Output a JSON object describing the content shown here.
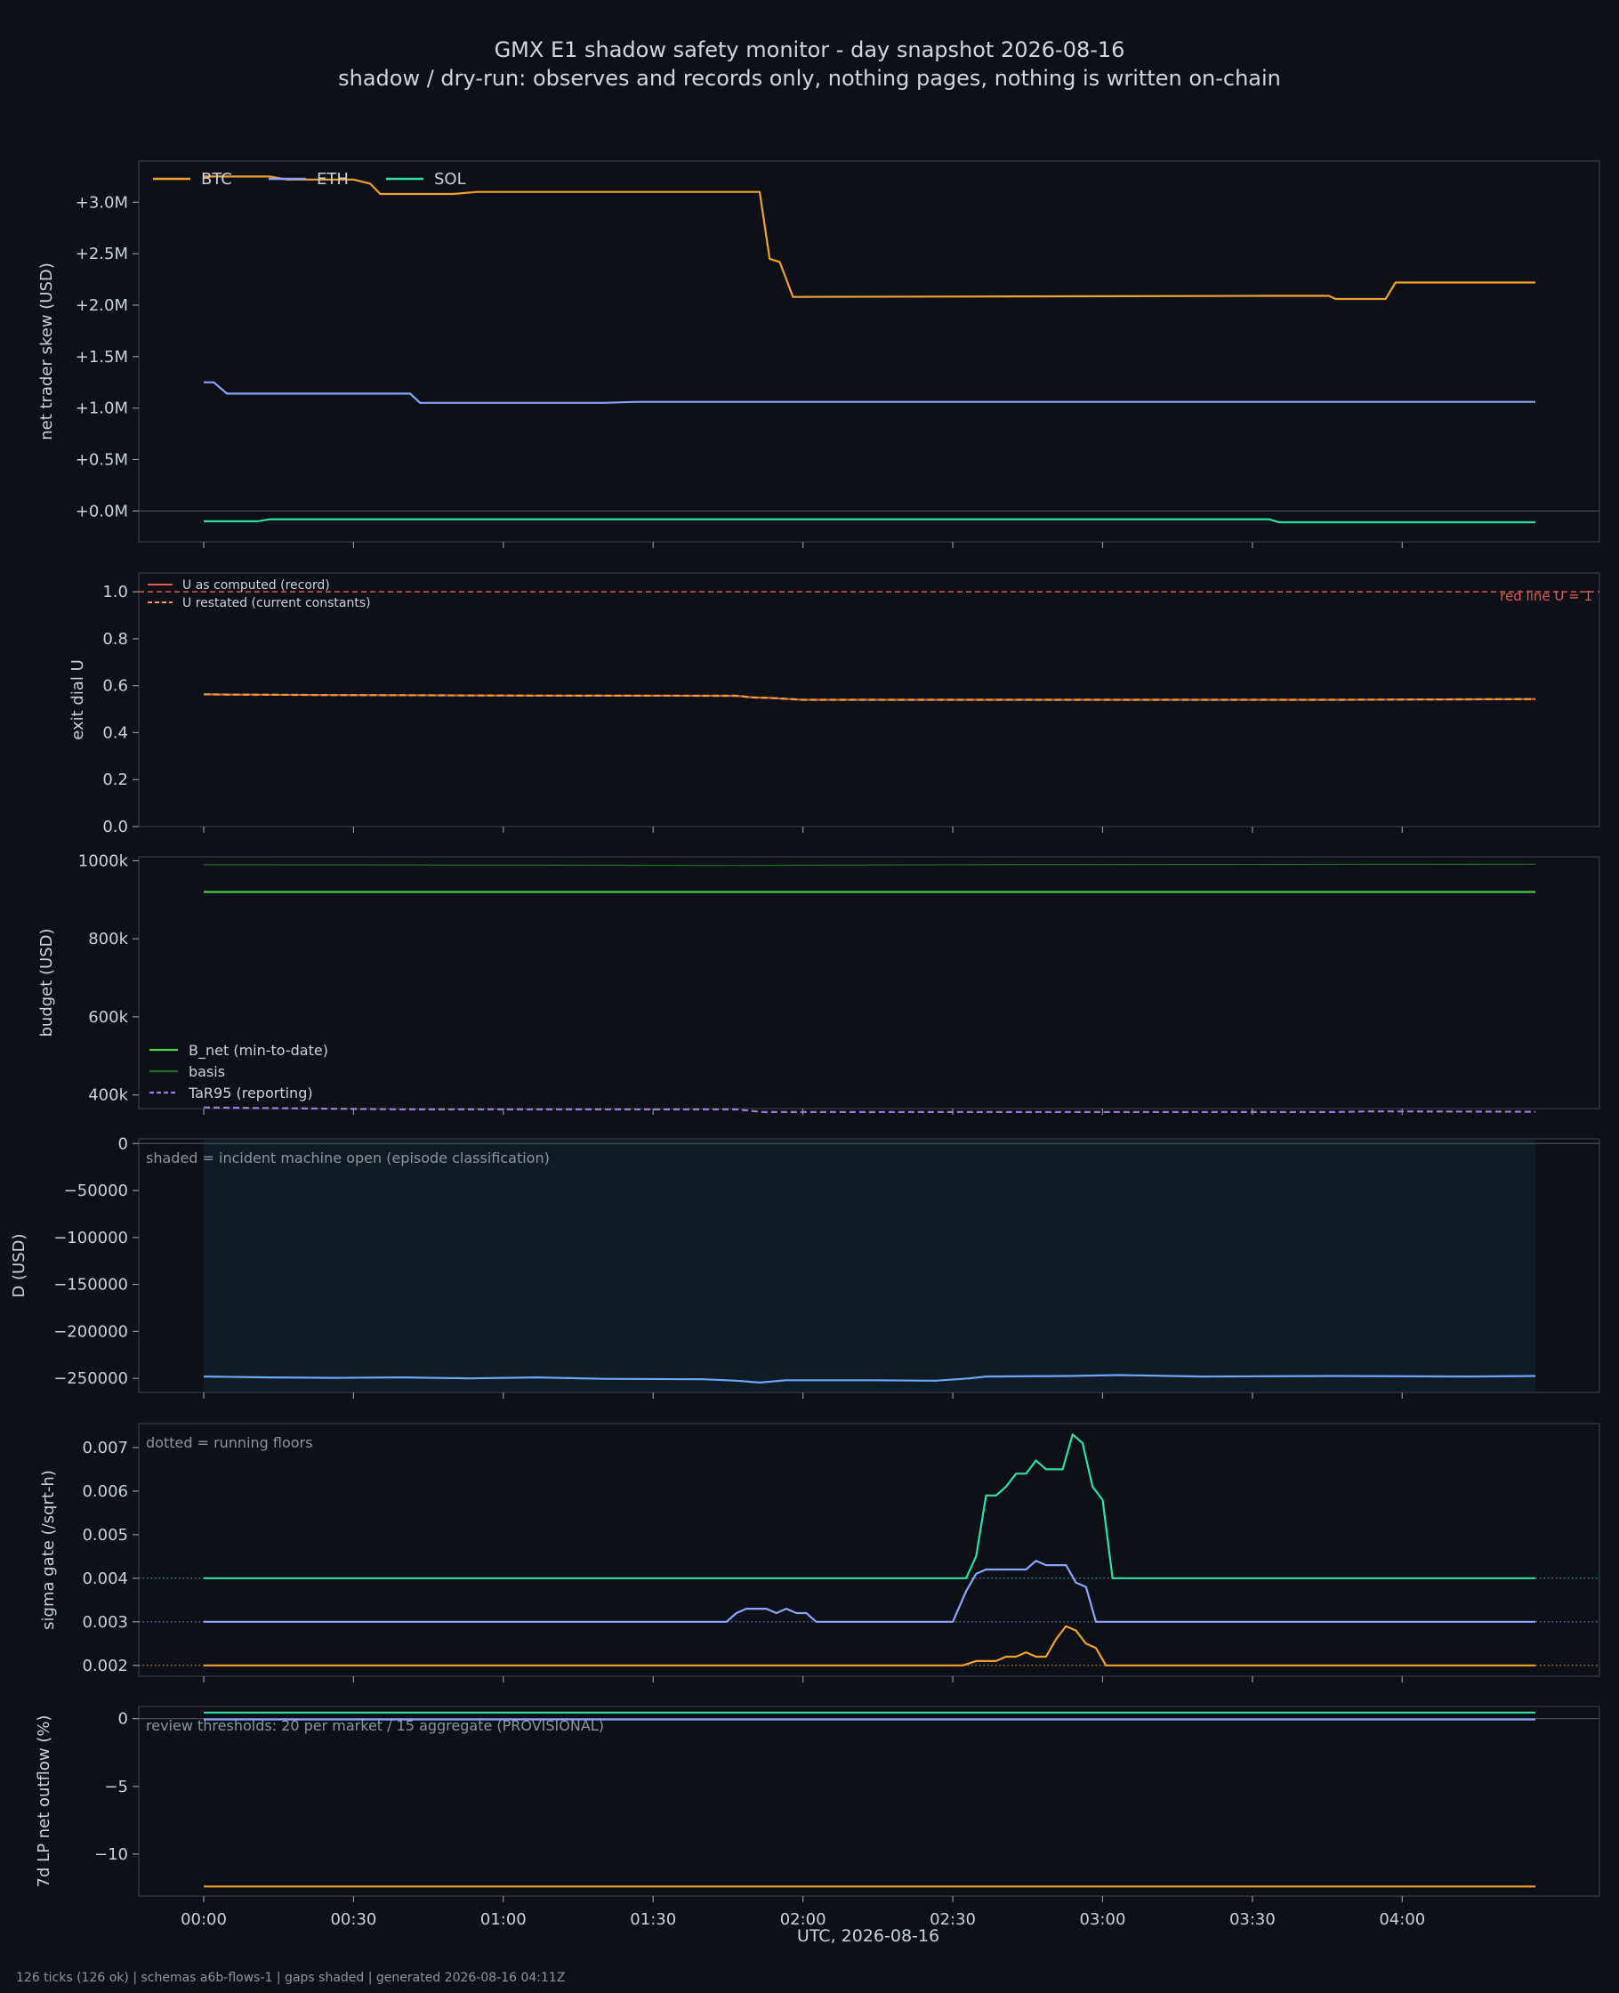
{
  "header": {
    "title": "GMX E1 shadow safety monitor - day snapshot 2026-08-16",
    "subtitle": "shadow / dry-run: observes and records only, nothing pages, nothing is written on-chain"
  },
  "footer": "126 ticks (126 ok) | schemas a6b-flows-1 | gaps shaded | generated 2026-08-16 04:11Z",
  "colors": {
    "background": "#0d1117",
    "panel_border": "#2d333b",
    "text": "#c9d1d9",
    "muted": "#8b949e",
    "btc": "#f0a030",
    "eth": "#8fa2ff",
    "sol": "#2fe0a0",
    "u_record": "#e05a4f",
    "u_restated": "#e6a030",
    "b_net": "#4ccc4c",
    "basis": "#2a6a2a",
    "tar95": "#9f7cd8",
    "d_line": "#6aa8ff",
    "incident_shade": "#0f1c26"
  },
  "x_axis": {
    "label": "UTC, 2026-08-16",
    "tick_labels": [
      "00:00",
      "00:30",
      "01:00",
      "01:30",
      "02:00",
      "02:30",
      "03:00",
      "03:30",
      "04:00"
    ]
  },
  "chart_data": [
    {
      "id": "skew",
      "type": "line",
      "ylabel": "net trader skew (USD)",
      "ylim": [
        -0.3,
        3.4
      ],
      "yticks": [
        0,
        0.5,
        1.0,
        1.5,
        2.0,
        2.5,
        3.0
      ],
      "ytick_labels": [
        "+0.0M",
        "+0.5M",
        "+1.0M",
        "+1.5M",
        "+2.0M",
        "+2.5M",
        "+3.0M"
      ],
      "zero_line": true,
      "legend": "top-left",
      "value_unit": "USD millions",
      "series": [
        {
          "name": "BTC",
          "color": "btc",
          "points": [
            [
              0,
              3.25
            ],
            [
              20,
              3.25
            ],
            [
              25,
              3.22
            ],
            [
              45,
              3.22
            ],
            [
              50,
              3.18
            ],
            [
              53,
              3.08
            ],
            [
              75,
              3.08
            ],
            [
              82,
              3.1
            ],
            [
              160,
              3.1
            ],
            [
              167,
              3.1
            ],
            [
              170,
              2.45
            ],
            [
              173,
              2.42
            ],
            [
              177,
              2.08
            ],
            [
              320,
              2.09
            ],
            [
              338,
              2.09
            ],
            [
              340,
              2.06
            ],
            [
              355,
              2.06
            ],
            [
              358,
              2.22
            ],
            [
              400,
              2.22
            ]
          ]
        },
        {
          "name": "ETH",
          "color": "eth",
          "points": [
            [
              0,
              1.25
            ],
            [
              3,
              1.25
            ],
            [
              7,
              1.14
            ],
            [
              62,
              1.14
            ],
            [
              65,
              1.05
            ],
            [
              120,
              1.05
            ],
            [
              130,
              1.06
            ],
            [
              400,
              1.06
            ]
          ]
        },
        {
          "name": "SOL",
          "color": "sol",
          "points": [
            [
              0,
              -0.1
            ],
            [
              16,
              -0.1
            ],
            [
              20,
              -0.08
            ],
            [
              320,
              -0.08
            ],
            [
              323,
              -0.11
            ],
            [
              400,
              -0.11
            ]
          ]
        }
      ]
    },
    {
      "id": "u",
      "type": "line",
      "ylabel": "exit dial U",
      "ylim": [
        0,
        1.08
      ],
      "yticks": [
        0,
        0.2,
        0.4,
        0.6,
        0.8,
        1.0
      ],
      "ytick_labels": [
        "0.0",
        "0.2",
        "0.4",
        "0.6",
        "0.8",
        "1.0"
      ],
      "legend": "top-left",
      "annotation": "red line U = 1",
      "reference_line": 1.0,
      "series": [
        {
          "name": "U as computed (record)",
          "color": "u_record",
          "style": "solid",
          "points": [
            [
              0,
              0.563
            ],
            [
              10,
              0.562
            ],
            [
              40,
              0.56
            ],
            [
              100,
              0.558
            ],
            [
              160,
              0.557
            ],
            [
              165,
              0.55
            ],
            [
              170,
              0.548
            ],
            [
              180,
              0.54
            ],
            [
              340,
              0.54
            ],
            [
              400,
              0.543
            ]
          ]
        },
        {
          "name": "U restated (current constants)",
          "color": "u_restated",
          "style": "dashed",
          "points": [
            [
              0,
              0.563
            ],
            [
              10,
              0.562
            ],
            [
              40,
              0.56
            ],
            [
              100,
              0.558
            ],
            [
              160,
              0.557
            ],
            [
              165,
              0.55
            ],
            [
              170,
              0.548
            ],
            [
              180,
              0.54
            ],
            [
              340,
              0.54
            ],
            [
              400,
              0.543
            ]
          ]
        }
      ]
    },
    {
      "id": "budget",
      "type": "line",
      "ylabel": "budget (USD)",
      "ylim": [
        365000,
        1010000
      ],
      "yticks": [
        400000,
        600000,
        800000,
        1000000
      ],
      "ytick_labels": [
        "400k",
        "600k",
        "800k",
        "1000k"
      ],
      "legend": "bottom-left",
      "series": [
        {
          "name": "B_net (min-to-date)",
          "color": "b_net",
          "style": "solid",
          "points": [
            [
              0,
              920000
            ],
            [
              400,
              920000
            ]
          ]
        },
        {
          "name": "basis",
          "color": "basis",
          "style": "solid",
          "points": [
            [
              0,
              990000
            ],
            [
              160,
              988000
            ],
            [
              230,
              990000
            ],
            [
              400,
              991000
            ]
          ]
        },
        {
          "name": "TaR95 (reporting)",
          "color": "tar95",
          "style": "dashed",
          "points": [
            [
              0,
              368000
            ],
            [
              60,
              363000
            ],
            [
              160,
              363000
            ],
            [
              168,
              356000
            ],
            [
              340,
              356000
            ],
            [
              350,
              358000
            ],
            [
              400,
              357000
            ]
          ]
        }
      ]
    },
    {
      "id": "d",
      "type": "line",
      "ylabel": "D (USD)",
      "ylim": [
        -265000,
        5000
      ],
      "yticks": [
        0,
        -50000,
        -100000,
        -150000,
        -200000,
        -250000
      ],
      "ytick_labels": [
        "0",
        "−50000",
        "−100000",
        "−150000",
        "−200000",
        "−250000"
      ],
      "zero_line": true,
      "annotation": "shaded = incident machine open (episode classification)",
      "shaded_span": [
        0,
        400
      ],
      "series": [
        {
          "name": "D",
          "color": "d_line",
          "points": [
            [
              0,
              -248000
            ],
            [
              20,
              -249000
            ],
            [
              40,
              -249500
            ],
            [
              60,
              -249000
            ],
            [
              80,
              -250000
            ],
            [
              100,
              -249000
            ],
            [
              120,
              -250500
            ],
            [
              150,
              -251000
            ],
            [
              160,
              -252500
            ],
            [
              167,
              -254500
            ],
            [
              175,
              -252000
            ],
            [
              190,
              -252000
            ],
            [
              200,
              -252000
            ],
            [
              220,
              -252500
            ],
            [
              230,
              -250000
            ],
            [
              235,
              -248000
            ],
            [
              260,
              -247500
            ],
            [
              275,
              -246500
            ],
            [
              300,
              -248000
            ],
            [
              340,
              -247500
            ],
            [
              380,
              -248000
            ],
            [
              400,
              -247500
            ]
          ]
        }
      ]
    },
    {
      "id": "sigma",
      "type": "line",
      "ylabel": "sigma gate (/sqrt-h)",
      "ylim": [
        0.00175,
        0.00755
      ],
      "yticks": [
        0.002,
        0.003,
        0.004,
        0.005,
        0.006,
        0.007
      ],
      "ytick_labels": [
        "0.002",
        "0.003",
        "0.004",
        "0.005",
        "0.006",
        "0.007"
      ],
      "annotation": "dotted = running floors",
      "floors": [
        {
          "color": "sol",
          "value": 0.004
        },
        {
          "color": "eth",
          "value": 0.003
        },
        {
          "color": "btc",
          "value": 0.002
        }
      ],
      "series": [
        {
          "name": "SOL",
          "color": "sol",
          "points": [
            [
              0,
              0.004
            ],
            [
              229,
              0.004
            ],
            [
              232,
              0.0045
            ],
            [
              235,
              0.0059
            ],
            [
              238,
              0.0059
            ],
            [
              241,
              0.0061
            ],
            [
              244,
              0.0064
            ],
            [
              247,
              0.0064
            ],
            [
              250,
              0.0067
            ],
            [
              253,
              0.0065
            ],
            [
              258,
              0.0065
            ],
            [
              261,
              0.0073
            ],
            [
              264,
              0.0071
            ],
            [
              267,
              0.0061
            ],
            [
              270,
              0.0058
            ],
            [
              273,
              0.004
            ],
            [
              400,
              0.004
            ]
          ]
        },
        {
          "name": "ETH",
          "color": "eth",
          "points": [
            [
              0,
              0.003
            ],
            [
              157,
              0.003
            ],
            [
              160,
              0.0032
            ],
            [
              163,
              0.0033
            ],
            [
              166,
              0.0033
            ],
            [
              169,
              0.0033
            ],
            [
              172,
              0.0032
            ],
            [
              175,
              0.0033
            ],
            [
              178,
              0.0032
            ],
            [
              181,
              0.0032
            ],
            [
              184,
              0.003
            ],
            [
              225,
              0.003
            ],
            [
              229,
              0.0037
            ],
            [
              232,
              0.0041
            ],
            [
              235,
              0.0042
            ],
            [
              247,
              0.0042
            ],
            [
              250,
              0.0044
            ],
            [
              253,
              0.0043
            ],
            [
              259,
              0.0043
            ],
            [
              262,
              0.0039
            ],
            [
              265,
              0.0038
            ],
            [
              268,
              0.003
            ],
            [
              400,
              0.003
            ]
          ]
        },
        {
          "name": "BTC",
          "color": "btc",
          "points": [
            [
              0,
              0.002
            ],
            [
              228,
              0.002
            ],
            [
              232,
              0.0021
            ],
            [
              235,
              0.0021
            ],
            [
              238,
              0.0021
            ],
            [
              241,
              0.0022
            ],
            [
              244,
              0.0022
            ],
            [
              247,
              0.0023
            ],
            [
              250,
              0.0022
            ],
            [
              253,
              0.0022
            ],
            [
              256,
              0.0026
            ],
            [
              259,
              0.0029
            ],
            [
              262,
              0.0028
            ],
            [
              265,
              0.0025
            ],
            [
              268,
              0.0024
            ],
            [
              271,
              0.002
            ],
            [
              400,
              0.002
            ]
          ]
        }
      ]
    },
    {
      "id": "lp",
      "type": "line",
      "ylabel": "7d LP net outflow (%)",
      "ylim": [
        -13.1,
        0.9
      ],
      "yticks": [
        0,
        -5,
        -10
      ],
      "ytick_labels": [
        "0",
        "−5",
        "−10"
      ],
      "zero_line": true,
      "annotation": "review thresholds: 20 per market / 15 aggregate (PROVISIONAL)",
      "series": [
        {
          "name": "SOL",
          "color": "sol",
          "points": [
            [
              0,
              0.45
            ],
            [
              400,
              0.45
            ]
          ]
        },
        {
          "name": "ETH",
          "color": "eth",
          "points": [
            [
              0,
              -0.05
            ],
            [
              400,
              -0.05
            ]
          ]
        },
        {
          "name": "BTC",
          "color": "btc",
          "points": [
            [
              0,
              -12.4
            ],
            [
              400,
              -12.4
            ]
          ]
        }
      ]
    }
  ]
}
